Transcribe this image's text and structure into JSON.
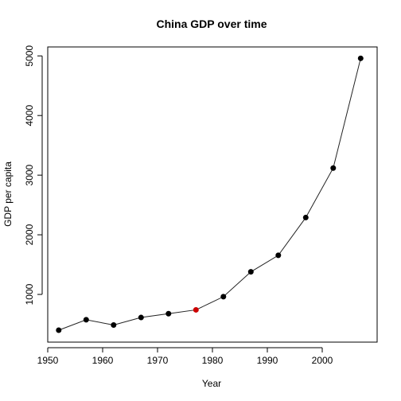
{
  "chart_data": {
    "type": "line",
    "title": "China GDP over time",
    "xlabel": "Year",
    "ylabel": "GDP per capita",
    "xlim": [
      1950,
      2010
    ],
    "ylim": [
      200,
      5150
    ],
    "x_ticks": [
      1950,
      1960,
      1970,
      1980,
      1990,
      2000
    ],
    "y_ticks": [
      1000,
      2000,
      3000,
      4000,
      5000
    ],
    "grid": false,
    "legend": "none",
    "x": [
      1952,
      1957,
      1962,
      1967,
      1972,
      1977,
      1982,
      1987,
      1992,
      1997,
      2002,
      2007
    ],
    "series": [
      {
        "values": [
          400,
          575,
          487,
          613,
          677,
          741,
          962,
          1379,
          1656,
          2289,
          3119,
          4959
        ],
        "color": "#000000",
        "highlight_index": 5,
        "highlight_color": "#cc0000"
      }
    ]
  }
}
